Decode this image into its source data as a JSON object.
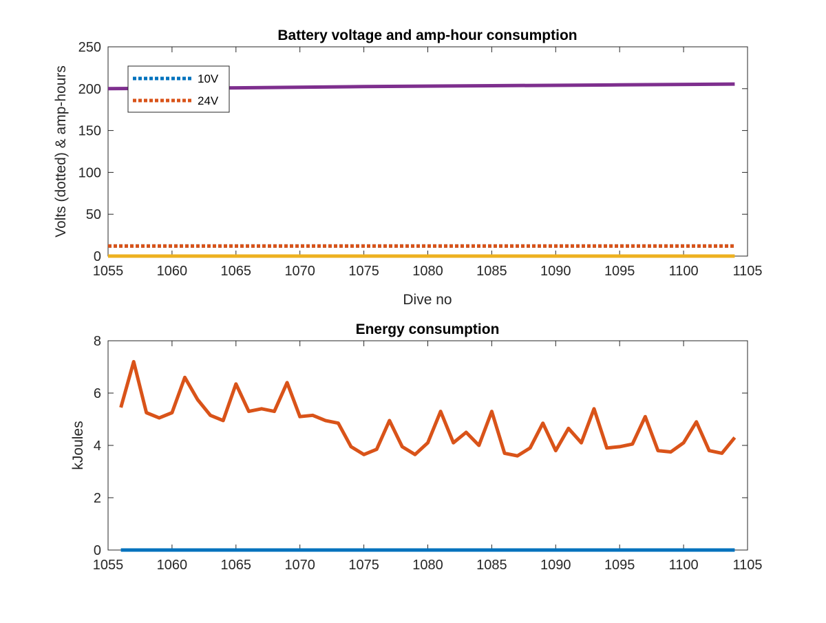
{
  "chart_data": [
    {
      "type": "line",
      "title": "Battery voltage and amp-hour consumption",
      "xlabel": "Dive no",
      "ylabel": "Volts (dotted) & amp-hours",
      "xlim": [
        1055,
        1105
      ],
      "ylim": [
        0,
        250
      ],
      "xticks": [
        "1055",
        "1060",
        "1065",
        "1070",
        "1075",
        "1080",
        "1085",
        "1090",
        "1095",
        "1100",
        "1105"
      ],
      "yticks": [
        "0",
        "50",
        "100",
        "150",
        "200",
        "250"
      ],
      "grid": false,
      "legend_location": "top-left",
      "series": [
        {
          "name": "10V",
          "color": "#0072BD",
          "style": "dotted",
          "x": [
            1055,
            1104
          ],
          "y": [
            12,
            12
          ]
        },
        {
          "name": "24V",
          "color": "#D95319",
          "style": "dotted",
          "x": [
            1055,
            1104
          ],
          "y": [
            12,
            12
          ]
        },
        {
          "color": "#EDB120",
          "style": "solid",
          "x": [
            1055,
            1104
          ],
          "y": [
            0,
            0
          ]
        },
        {
          "color": "#7E2F8E",
          "style": "solid",
          "x": [
            1055,
            1065,
            1075,
            1085,
            1095,
            1104
          ],
          "y": [
            200,
            201,
            202.5,
            203.5,
            204.5,
            205.5
          ]
        }
      ]
    },
    {
      "type": "line",
      "title": "Energy consumption",
      "xlabel": "",
      "ylabel": "kJoules",
      "xlim": [
        1055,
        1105
      ],
      "ylim": [
        0,
        8
      ],
      "xticks": [
        "1055",
        "1060",
        "1065",
        "1070",
        "1075",
        "1080",
        "1085",
        "1090",
        "1095",
        "1100",
        "1105"
      ],
      "yticks": [
        "0",
        "2",
        "4",
        "6",
        "8"
      ],
      "grid": false,
      "series": [
        {
          "color": "#0072BD",
          "style": "solid",
          "x": [
            1056,
            1104
          ],
          "y": [
            0,
            0
          ]
        },
        {
          "color": "#D95319",
          "style": "solid",
          "x": [
            1056,
            1057,
            1058,
            1059,
            1060,
            1061,
            1062,
            1063,
            1064,
            1065,
            1066,
            1067,
            1068,
            1069,
            1070,
            1071,
            1072,
            1073,
            1074,
            1075,
            1076,
            1077,
            1078,
            1079,
            1080,
            1081,
            1082,
            1083,
            1084,
            1085,
            1086,
            1087,
            1088,
            1089,
            1090,
            1091,
            1092,
            1093,
            1094,
            1095,
            1096,
            1097,
            1098,
            1099,
            1100,
            1101,
            1102,
            1103,
            1104
          ],
          "y": [
            5.45,
            7.2,
            5.25,
            5.05,
            5.25,
            6.6,
            5.75,
            5.15,
            4.95,
            6.35,
            5.3,
            5.4,
            5.3,
            6.4,
            5.1,
            5.15,
            4.95,
            4.85,
            3.95,
            3.65,
            3.85,
            4.95,
            3.95,
            3.65,
            4.1,
            5.3,
            4.1,
            4.5,
            4.0,
            5.3,
            3.7,
            3.6,
            3.9,
            4.85,
            3.8,
            4.65,
            4.1,
            5.4,
            3.9,
            3.95,
            4.05,
            5.1,
            3.8,
            3.75,
            4.1,
            4.9,
            3.8,
            3.7,
            4.3
          ]
        }
      ]
    }
  ]
}
